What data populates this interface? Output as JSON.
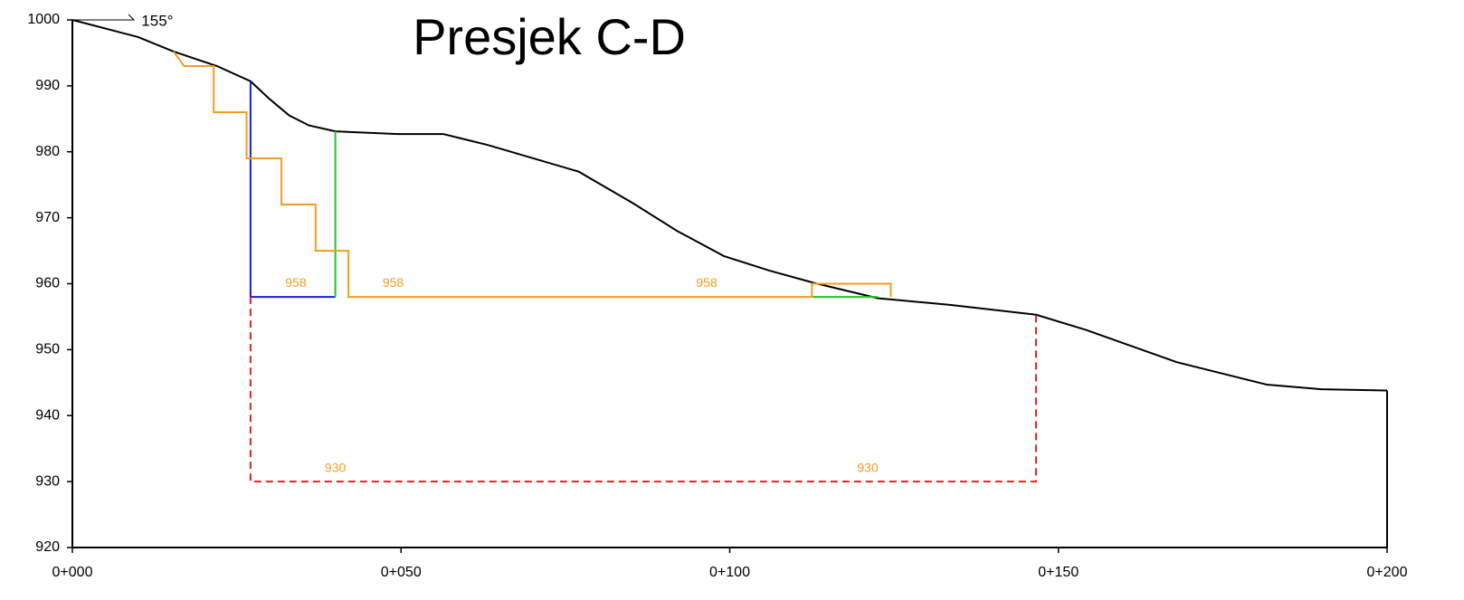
{
  "chart_data": {
    "type": "line",
    "title": "Presjek C-D",
    "xlim": [
      0,
      200
    ],
    "ylim": [
      920,
      1000
    ],
    "xticks": [
      {
        "value": 0,
        "label": "0+000"
      },
      {
        "value": 50,
        "label": "0+050"
      },
      {
        "value": 100,
        "label": "0+100"
      },
      {
        "value": 150,
        "label": "0+150"
      },
      {
        "value": 200,
        "label": "0+200"
      }
    ],
    "yticks": [
      920,
      930,
      940,
      950,
      960,
      970,
      980,
      990,
      1000
    ],
    "series": [
      {
        "color": "#000000",
        "dash": false,
        "x": [
          0,
          10,
          15.4,
          22,
          27.1,
          30,
          33,
          36,
          40,
          49.5,
          56.4,
          63.3,
          77,
          85.3,
          92,
          99.1,
          106,
          112.9,
          122.5,
          133.5,
          146.6,
          154.2,
          168,
          181.7,
          190,
          200
        ],
        "values": [
          1000,
          997.4,
          995.2,
          993,
          990.7,
          988,
          985.5,
          984,
          983.1,
          982.7,
          982.7,
          981,
          977,
          972.2,
          968,
          964.2,
          962,
          960.1,
          957.8,
          956.8,
          955.3,
          953,
          948.1,
          944.7,
          944,
          943.8
        ]
      },
      {
        "color": "#1a1ae6",
        "dash": false,
        "x": [
          27.1,
          27.1,
          40
        ],
        "values": [
          990.7,
          958,
          958
        ]
      },
      {
        "color": "#22c422",
        "dash": false,
        "x": [
          40,
          40
        ],
        "values": [
          983.1,
          958
        ]
      },
      {
        "color": "#22c422",
        "dash": false,
        "x": [
          112.5,
          122.5
        ],
        "values": [
          958,
          958
        ]
      },
      {
        "color": "#f39c1f",
        "dash": false,
        "x": [
          15.4,
          17,
          21.5,
          21.5,
          26.5,
          26.5,
          31.8,
          31.8,
          37,
          37,
          42,
          42,
          112.5,
          112.5,
          124.5,
          124.5
        ],
        "values": [
          995.2,
          993,
          993,
          986,
          986,
          979,
          979,
          972,
          972,
          965,
          965,
          958,
          958,
          960,
          960,
          958
        ]
      },
      {
        "color": "#e62020",
        "dash": true,
        "x": [
          27.1,
          27.1,
          146.6,
          146.6
        ],
        "values": [
          958,
          930,
          930,
          955.3
        ]
      }
    ],
    "annotations": [
      {
        "text": "958",
        "x": 34,
        "y": 960
      },
      {
        "text": "958",
        "x": 48.8,
        "y": 960
      },
      {
        "text": "958",
        "x": 96.5,
        "y": 960
      },
      {
        "text": "930",
        "x": 40,
        "y": 932
      },
      {
        "text": "930",
        "x": 121,
        "y": 932
      },
      {
        "text": "155°",
        "x": 10.5,
        "y": 999.7
      }
    ]
  }
}
